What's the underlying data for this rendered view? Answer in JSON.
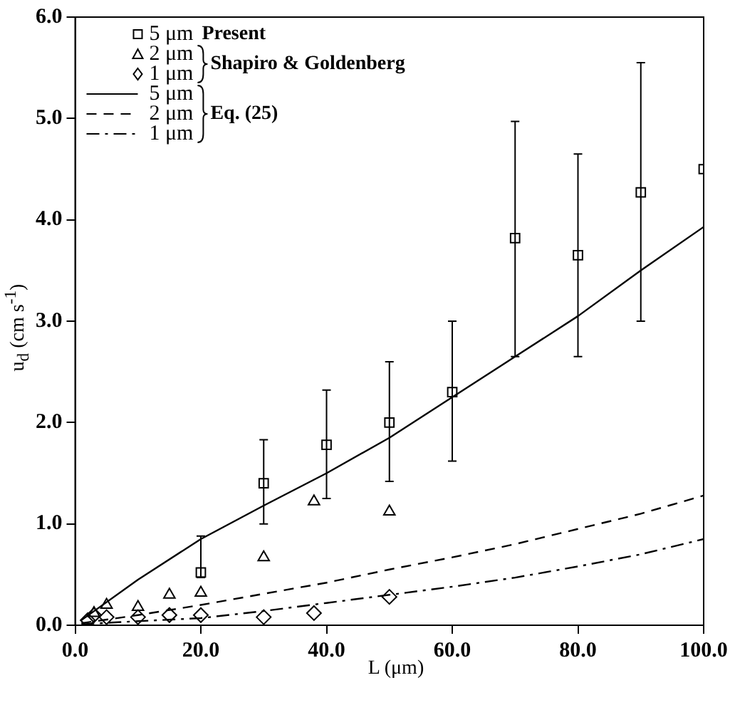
{
  "chart_data": {
    "type": "scatter",
    "xlabel": "L (μm)",
    "ylabel": "u$_{d}$ (cm s$^{-1}$)",
    "xlim": [
      0,
      100
    ],
    "ylim": [
      0,
      6
    ],
    "xticks": [
      {
        "value": 0,
        "label": "0.0"
      },
      {
        "value": 20,
        "label": "20.0"
      },
      {
        "value": 40,
        "label": "40.0"
      },
      {
        "value": 60,
        "label": "60.0"
      },
      {
        "value": 80,
        "label": "80.0"
      },
      {
        "value": 100,
        "label": "100.0"
      }
    ],
    "yticks": [
      {
        "value": 0,
        "label": "0.0"
      },
      {
        "value": 1,
        "label": "1.0"
      },
      {
        "value": 2,
        "label": "2.0"
      },
      {
        "value": 3,
        "label": "3.0"
      },
      {
        "value": 4,
        "label": "4.0"
      },
      {
        "value": 5,
        "label": "5.0"
      },
      {
        "value": 6,
        "label": "6.0"
      }
    ],
    "grid": false,
    "legend": "top left",
    "annotations": [
      "Present",
      "Shapiro & Goldenberg",
      "Eq. (25)"
    ],
    "series": [
      {
        "name": "5 μm",
        "marker": "square",
        "color": "#000000",
        "x": [
          20,
          30,
          40,
          50,
          60,
          70,
          80,
          90,
          100
        ],
        "values": [
          0.52,
          1.4,
          1.78,
          2.0,
          2.3,
          3.82,
          3.65,
          4.27,
          4.5
        ],
        "errors": [
          [
            0.47,
            0.88
          ],
          [
            1.0,
            1.83
          ],
          [
            1.25,
            2.32
          ],
          [
            1.42,
            2.6
          ],
          [
            1.62,
            3.0
          ],
          [
            2.65,
            4.97
          ],
          [
            2.65,
            4.65
          ],
          [
            3.0,
            5.55
          ],
          null
        ]
      },
      {
        "name": "2 μm",
        "marker": "triangle",
        "color": "#000000",
        "x": [
          3,
          5,
          10,
          15,
          20,
          30,
          38,
          50
        ],
        "values": [
          0.12,
          0.2,
          0.18,
          0.3,
          0.32,
          0.67,
          1.22,
          1.12
        ]
      },
      {
        "name": "1 μm",
        "marker": "diamond",
        "color": "#000000",
        "x": [
          2,
          3,
          5,
          10,
          15,
          20,
          30,
          38,
          50
        ],
        "values": [
          0.05,
          0.1,
          0.08,
          0.08,
          0.1,
          0.1,
          0.08,
          0.12,
          0.28
        ]
      },
      {
        "name": "5 μm",
        "type": "line",
        "marker": "none",
        "line_style": "solid",
        "color": "#000000",
        "x": [
          1,
          10,
          20,
          30,
          40,
          50,
          60,
          70,
          80,
          90,
          100
        ],
        "values": [
          0.05,
          0.45,
          0.85,
          1.18,
          1.5,
          1.85,
          2.25,
          2.65,
          3.05,
          3.5,
          3.93
        ]
      },
      {
        "name": "2 μm",
        "type": "line",
        "marker": "none",
        "line_style": "dashed",
        "color": "#000000",
        "x": [
          1,
          10,
          20,
          30,
          40,
          50,
          60,
          70,
          80,
          90,
          100
        ],
        "values": [
          0.02,
          0.1,
          0.2,
          0.31,
          0.42,
          0.55,
          0.67,
          0.8,
          0.95,
          1.1,
          1.28
        ]
      },
      {
        "name": "1 μm",
        "type": "line",
        "marker": "none",
        "line_style": "dashdot",
        "color": "#000000",
        "x": [
          1,
          10,
          20,
          30,
          40,
          50,
          60,
          70,
          80,
          90,
          100
        ],
        "values": [
          0.01,
          0.04,
          0.07,
          0.14,
          0.22,
          0.3,
          0.38,
          0.47,
          0.58,
          0.7,
          0.85
        ]
      }
    ]
  }
}
